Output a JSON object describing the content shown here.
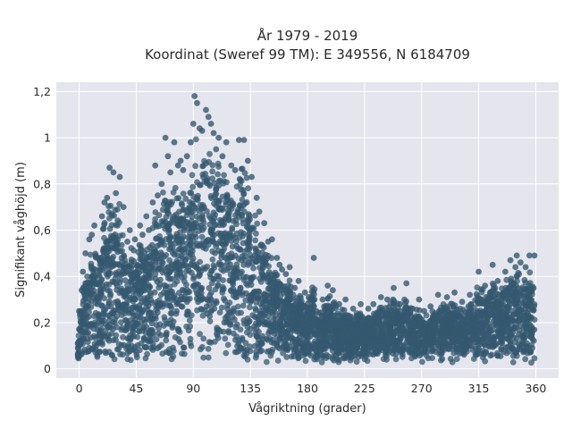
{
  "chart_data": {
    "type": "scatter",
    "title": "År 1979 - 2019",
    "subtitle": "Koordinat (Sweref 99 TM): E 349556, N 6184709",
    "xlabel": "Vågriktning (grader)",
    "ylabel": "Signifikant våghöjd (m)",
    "xlim": [
      -18,
      378
    ],
    "ylim": [
      -0.04,
      1.24
    ],
    "xticks": [
      0,
      45,
      90,
      135,
      180,
      225,
      270,
      315,
      360
    ],
    "xtick_labels": [
      "0",
      "45",
      "90",
      "135",
      "180",
      "225",
      "270",
      "315",
      "360"
    ],
    "yticks": [
      0,
      0.2,
      0.4,
      0.6,
      0.8,
      1,
      1.2
    ],
    "ytick_labels": [
      "0",
      "0,2",
      "0,4",
      "0,6",
      "0,8",
      "1",
      "1,2"
    ],
    "grid": true,
    "marker_color": "#34586f",
    "plot_background": "#e5e5ee",
    "series": [
      {
        "points": [
          [
            -1,
            0.11
          ],
          [
            0,
            0.25
          ],
          [
            2,
            0.34
          ],
          [
            3,
            0.42
          ],
          [
            5,
            0.5
          ],
          [
            8,
            0.56
          ],
          [
            10,
            0.58
          ],
          [
            12,
            0.62
          ],
          [
            15,
            0.48
          ],
          [
            18,
            0.66
          ],
          [
            20,
            0.72
          ],
          [
            22,
            0.74
          ],
          [
            24,
            0.87
          ],
          [
            27,
            0.85
          ],
          [
            29,
            0.76
          ],
          [
            32,
            0.83
          ],
          [
            35,
            0.7
          ],
          [
            38,
            0.55
          ],
          [
            40,
            0.6
          ],
          [
            44,
            0.56
          ],
          [
            48,
            0.62
          ],
          [
            50,
            0.58
          ],
          [
            53,
            0.66
          ],
          [
            55,
            0.6
          ],
          [
            58,
            0.72
          ],
          [
            60,
            0.88
          ],
          [
            62,
            0.75
          ],
          [
            65,
            0.8
          ],
          [
            68,
            1.0
          ],
          [
            70,
            0.92
          ],
          [
            72,
            0.85
          ],
          [
            75,
            0.98
          ],
          [
            78,
            0.88
          ],
          [
            80,
            0.9
          ],
          [
            82,
            0.86
          ],
          [
            85,
            0.92
          ],
          [
            88,
            0.98
          ],
          [
            90,
            1.06
          ],
          [
            91,
            1.18
          ],
          [
            93,
            1.15
          ],
          [
            95,
            1.04
          ],
          [
            97,
            1.03
          ],
          [
            100,
            1.12
          ],
          [
            102,
            1.09
          ],
          [
            104,
            1.06
          ],
          [
            106,
            1.02
          ],
          [
            108,
            0.95
          ],
          [
            110,
            1.0
          ],
          [
            113,
            0.92
          ],
          [
            116,
            0.98
          ],
          [
            120,
            0.88
          ],
          [
            123,
            0.86
          ],
          [
            126,
            0.99
          ],
          [
            130,
            0.99
          ],
          [
            133,
            0.9
          ],
          [
            136,
            0.83
          ],
          [
            140,
            0.74
          ],
          [
            142,
            0.68
          ],
          [
            146,
            0.63
          ],
          [
            149,
            0.55
          ],
          [
            152,
            0.56
          ],
          [
            156,
            0.48
          ],
          [
            158,
            0.45
          ],
          [
            160,
            0.43
          ],
          [
            163,
            0.41
          ],
          [
            166,
            0.44
          ],
          [
            170,
            0.35
          ],
          [
            173,
            0.38
          ],
          [
            178,
            0.33
          ],
          [
            181,
            0.31
          ],
          [
            185,
            0.48
          ],
          [
            187,
            0.25
          ],
          [
            192,
            0.3
          ],
          [
            196,
            0.36
          ],
          [
            200,
            0.34
          ],
          [
            205,
            0.28
          ],
          [
            210,
            0.3
          ],
          [
            216,
            0.26
          ],
          [
            222,
            0.28
          ],
          [
            228,
            0.26
          ],
          [
            232,
            0.28
          ],
          [
            238,
            0.31
          ],
          [
            243,
            0.3
          ],
          [
            248,
            0.35
          ],
          [
            253,
            0.28
          ],
          [
            258,
            0.37
          ],
          [
            263,
            0.26
          ],
          [
            268,
            0.3
          ],
          [
            272,
            0.25
          ],
          [
            277,
            0.27
          ],
          [
            283,
            0.32
          ],
          [
            290,
            0.31
          ],
          [
            296,
            0.33
          ],
          [
            302,
            0.29
          ],
          [
            308,
            0.32
          ],
          [
            315,
            0.42
          ],
          [
            320,
            0.36
          ],
          [
            326,
            0.45
          ],
          [
            330,
            0.38
          ],
          [
            336,
            0.42
          ],
          [
            340,
            0.47
          ],
          [
            344,
            0.44
          ],
          [
            345,
            0.49
          ],
          [
            348,
            0.46
          ],
          [
            352,
            0.44
          ],
          [
            355,
            0.49
          ],
          [
            359,
            0.49
          ]
        ]
      }
    ]
  }
}
